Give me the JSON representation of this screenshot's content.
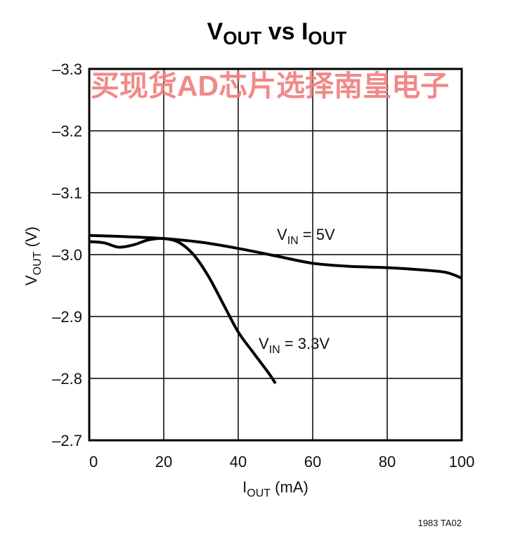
{
  "chart_data": {
    "type": "line",
    "title": {
      "main": "V",
      "sub": "OUT",
      "mid": " vs I",
      "sub2": "OUT"
    },
    "xlabel": {
      "main": "I",
      "sub": "OUT",
      "rest": " (mA)"
    },
    "ylabel": {
      "main": "V",
      "sub": "OUT",
      "rest": " (V)"
    },
    "xlim": [
      0,
      100
    ],
    "ylim": [
      -2.7,
      -3.3
    ],
    "x_ticks": [
      0,
      20,
      40,
      60,
      80,
      100
    ],
    "x_tick_labels": [
      "0",
      "20",
      "40",
      "60",
      "80",
      "100"
    ],
    "y_ticks": [
      -3.3,
      -3.2,
      -3.1,
      -3.0,
      -2.9,
      -2.8,
      -2.7
    ],
    "y_tick_labels": [
      "–3.3",
      "–3.2",
      "–3.1",
      "–3.0",
      "–2.9",
      "–2.8",
      "–2.7"
    ],
    "grid": true,
    "series": [
      {
        "name": "V_IN = 5V",
        "label": {
          "main": "V",
          "sub": "IN",
          "rest": " = 5V"
        },
        "color": "#000000",
        "points": [
          [
            0,
            -3.031
          ],
          [
            10,
            -3.029
          ],
          [
            20,
            -3.026
          ],
          [
            30,
            -3.02
          ],
          [
            40,
            -3.01
          ],
          [
            50,
            -2.998
          ],
          [
            60,
            -2.986
          ],
          [
            70,
            -2.981
          ],
          [
            80,
            -2.979
          ],
          [
            90,
            -2.975
          ],
          [
            96,
            -2.971
          ],
          [
            100,
            -2.962
          ]
        ]
      },
      {
        "name": "V_IN = 3.3V",
        "label": {
          "main": "V",
          "sub": "IN",
          "rest": " = 3.3V"
        },
        "color": "#000000",
        "points": [
          [
            0,
            -3.021
          ],
          [
            4,
            -3.019
          ],
          [
            8,
            -3.012
          ],
          [
            12,
            -3.016
          ],
          [
            16,
            -3.024
          ],
          [
            20,
            -3.026
          ],
          [
            24,
            -3.02
          ],
          [
            28,
            -3.0
          ],
          [
            32,
            -2.965
          ],
          [
            36,
            -2.92
          ],
          [
            40,
            -2.875
          ],
          [
            44,
            -2.842
          ],
          [
            48,
            -2.81
          ],
          [
            50,
            -2.792
          ]
        ]
      }
    ],
    "figure_code": "1983 TA02"
  },
  "watermark": "买现货AD芯片选择南皇电子"
}
